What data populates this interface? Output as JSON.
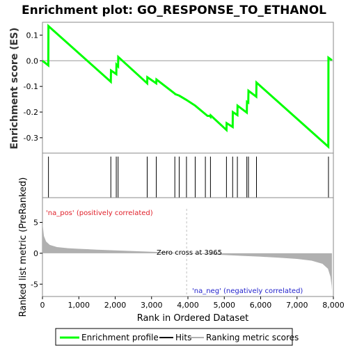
{
  "chart_data": {
    "type": "line",
    "title": "Enrichment plot: GO_RESPONSE_TO_ETHANOL",
    "ylabel_top": "Enrichment score (ES)",
    "ylabel_bottom": "Ranked list metric (PreRanked)",
    "xlabel": "Rank in Ordered Dataset",
    "xlim": [
      0,
      8000
    ],
    "x_ticks": [
      0,
      1000,
      2000,
      3000,
      4000,
      5000,
      6000,
      7000,
      8000
    ],
    "x_tick_labels": [
      "0",
      "1,000",
      "2,000",
      "3,000",
      "4,000",
      "5,000",
      "6,000",
      "7,000",
      "8,000"
    ],
    "es_ylim": [
      -0.36,
      0.15
    ],
    "es_ticks": [
      0.1,
      0.0,
      -0.1,
      -0.2,
      -0.3
    ],
    "es_tick_labels": [
      "0.1",
      "0.0",
      "-0.1",
      "-0.2",
      "-0.3"
    ],
    "metric_ylim": [
      -7,
      9
    ],
    "metric_ticks": [
      5,
      0,
      -5
    ],
    "metric_tick_labels": [
      "5",
      "0",
      "-5"
    ],
    "series": [
      {
        "name": "Enrichment profile",
        "color": "#00ff00",
        "points": [
          [
            0,
            0.0
          ],
          [
            160,
            -0.018
          ],
          [
            165,
            0.135
          ],
          [
            1880,
            -0.082
          ],
          [
            1885,
            -0.038
          ],
          [
            2030,
            -0.052
          ],
          [
            2035,
            -0.015
          ],
          [
            2080,
            -0.022
          ],
          [
            2085,
            0.015
          ],
          [
            2880,
            -0.088
          ],
          [
            2885,
            -0.064
          ],
          [
            3130,
            -0.088
          ],
          [
            3135,
            -0.073
          ],
          [
            3640,
            -0.128
          ],
          [
            3650,
            -0.13
          ],
          [
            3760,
            -0.136
          ],
          [
            3950,
            -0.152
          ],
          [
            4200,
            -0.175
          ],
          [
            4480,
            -0.208
          ],
          [
            4540,
            -0.215
          ],
          [
            4600,
            -0.215
          ],
          [
            4620,
            -0.218
          ],
          [
            4625,
            -0.213
          ],
          [
            5060,
            -0.27
          ],
          [
            5065,
            -0.243
          ],
          [
            5230,
            -0.258
          ],
          [
            5235,
            -0.2
          ],
          [
            5360,
            -0.212
          ],
          [
            5365,
            -0.175
          ],
          [
            5620,
            -0.202
          ],
          [
            5625,
            -0.16
          ],
          [
            5660,
            -0.163
          ],
          [
            5665,
            -0.117
          ],
          [
            5880,
            -0.14
          ],
          [
            5885,
            -0.085
          ],
          [
            7860,
            -0.335
          ],
          [
            7865,
            0.012
          ],
          [
            7960,
            0.002
          ]
        ]
      }
    ],
    "hits": [
      165,
      1880,
      2030,
      2080,
      2880,
      3130,
      3640,
      3760,
      3960,
      4200,
      4480,
      4620,
      5060,
      5230,
      5360,
      5620,
      5665,
      5885,
      7865
    ],
    "heat_bands": [
      {
        "x0": 0,
        "x1": 1300,
        "color": "#f25f66"
      },
      {
        "x0": 1300,
        "x1": 2150,
        "color": "#f28090"
      },
      {
        "x0": 2150,
        "x1": 3000,
        "color": "#f5a0a8"
      },
      {
        "x0": 3000,
        "x1": 3950,
        "color": "#fbc8dc"
      },
      {
        "x0": 3950,
        "x1": 5050,
        "color": "#e8e0f6"
      },
      {
        "x0": 5050,
        "x1": 5850,
        "color": "#c9c4f2"
      },
      {
        "x0": 5850,
        "x1": 6450,
        "color": "#9c97ec"
      },
      {
        "x0": 6450,
        "x1": 7650,
        "color": "#6b5fe2"
      },
      {
        "x0": 7650,
        "x1": 7960,
        "color": "#2a00b8"
      }
    ],
    "metric_profile": [
      [
        0,
        4.9
      ],
      [
        40,
        2.8
      ],
      [
        100,
        1.9
      ],
      [
        200,
        1.35
      ],
      [
        400,
        1.0
      ],
      [
        700,
        0.82
      ],
      [
        1000,
        0.72
      ],
      [
        1500,
        0.58
      ],
      [
        2000,
        0.46
      ],
      [
        2500,
        0.36
      ],
      [
        3000,
        0.24
      ],
      [
        3500,
        0.12
      ],
      [
        3965,
        0.0
      ],
      [
        4500,
        -0.14
      ],
      [
        5000,
        -0.28
      ],
      [
        5500,
        -0.42
      ],
      [
        6000,
        -0.55
      ],
      [
        6500,
        -0.72
      ],
      [
        7000,
        -0.92
      ],
      [
        7400,
        -1.2
      ],
      [
        7700,
        -1.7
      ],
      [
        7850,
        -2.5
      ],
      [
        7920,
        -3.8
      ],
      [
        7950,
        -5.2
      ],
      [
        7960,
        -6.0
      ]
    ],
    "zero_cross": 3965,
    "annotations": {
      "zero_cross": "Zero cross at 3965",
      "pos": "'na_pos' (positively correlated)",
      "neg": "'na_neg' (negatively correlated)"
    },
    "legend": [
      "Enrichment profile",
      "Hits",
      "Ranking metric scores"
    ],
    "colors": {
      "profile": "#00ff00",
      "hits": "#000000",
      "metric": "#b0b0b0",
      "pos_text": "#e0202a",
      "neg_text": "#2222cc",
      "zero_line": "#c0c0c0"
    }
  }
}
